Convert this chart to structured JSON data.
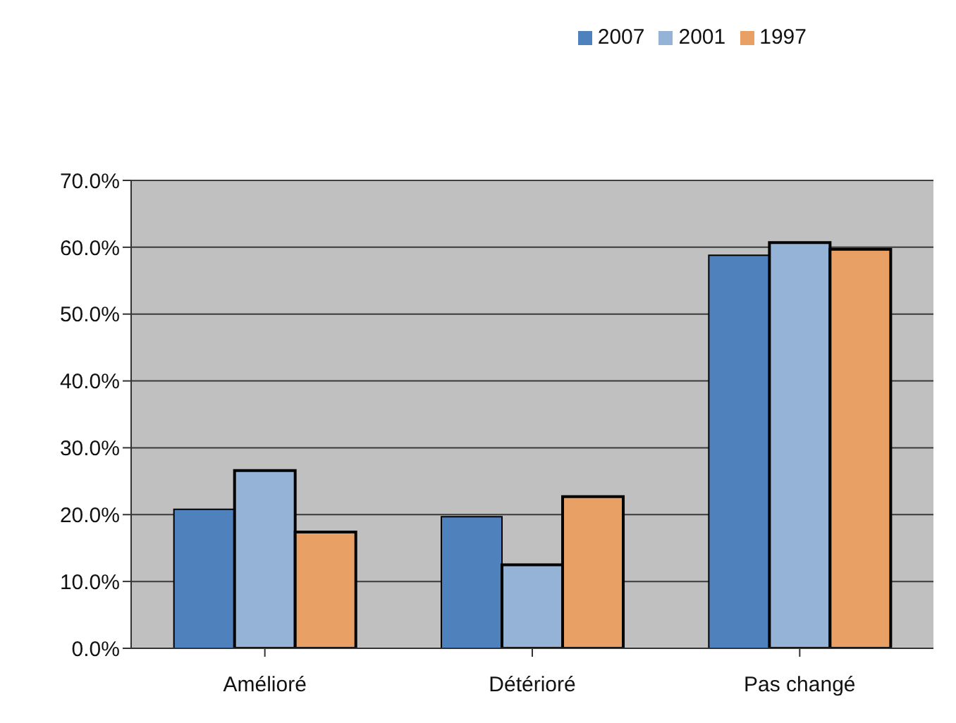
{
  "chart_data": {
    "type": "bar",
    "categories": [
      "Amélioré",
      "Détérioré",
      "Pas changé"
    ],
    "series": [
      {
        "name": "2007",
        "color": "#4f81bd",
        "values": [
          20.8,
          19.7,
          58.8
        ]
      },
      {
        "name": "2001",
        "color": "#95b3d7",
        "values": [
          26.6,
          12.5,
          60.7
        ]
      },
      {
        "name": "1997",
        "color": "#e9a064",
        "values": [
          17.4,
          22.7,
          59.7
        ]
      }
    ],
    "ylim": [
      0,
      70
    ],
    "yticks": [
      {
        "value": 0,
        "label": "0.0%"
      },
      {
        "value": 10,
        "label": "10.0%"
      },
      {
        "value": 20,
        "label": "20.0%"
      },
      {
        "value": 30,
        "label": "30.0%"
      },
      {
        "value": 40,
        "label": "40.0%"
      },
      {
        "value": 50,
        "label": "50.0%"
      },
      {
        "value": 60,
        "label": "60.0%"
      },
      {
        "value": 70,
        "label": "70.0%"
      }
    ],
    "grid": "y",
    "legend": "top right"
  }
}
